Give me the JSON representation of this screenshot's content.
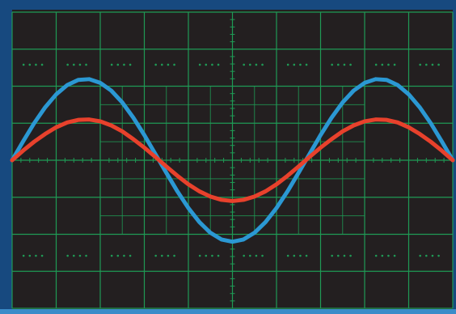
{
  "chart_data": {
    "type": "line",
    "x": [
      0,
      0.25,
      0.5,
      0.75,
      1,
      1.25,
      1.5,
      1.75,
      2,
      2.25,
      2.5,
      2.75,
      3,
      3.25,
      3.5,
      3.75,
      4,
      4.25,
      4.5,
      4.75,
      5,
      5.25,
      5.5,
      5.75,
      6,
      6.25,
      6.5,
      6.75,
      7,
      7.25,
      7.5,
      7.75,
      8,
      8.25,
      8.5,
      8.75,
      9,
      9.25,
      9.5,
      9.75,
      10
    ],
    "series": [
      {
        "color": "#2b98d3",
        "values": [
          0,
          0.51,
          1.0,
          1.43,
          1.78,
          2.03,
          2.17,
          2.19,
          2.09,
          1.88,
          1.56,
          1.15,
          0.68,
          0.17,
          -0.34,
          -0.84,
          -1.29,
          -1.67,
          -1.96,
          -2.14,
          -2.2,
          -2.14,
          -1.96,
          -1.67,
          -1.29,
          -0.84,
          -0.34,
          0.17,
          0.68,
          1.15,
          1.56,
          1.88,
          2.09,
          2.19,
          2.17,
          2.03,
          1.78,
          1.43,
          1.0,
          0.51,
          0
        ]
      },
      {
        "color": "#e8412c",
        "values": [
          0,
          0.26,
          0.5,
          0.71,
          0.89,
          1.02,
          1.09,
          1.1,
          1.05,
          0.94,
          0.78,
          0.57,
          0.34,
          0.09,
          -0.17,
          -0.42,
          -0.65,
          -0.84,
          -0.98,
          -1.07,
          -1.1,
          -1.07,
          -0.98,
          -0.84,
          -0.65,
          -0.42,
          -0.17,
          0.09,
          0.34,
          0.57,
          0.78,
          0.94,
          1.05,
          1.1,
          1.09,
          1.02,
          0.89,
          0.71,
          0.5,
          0.26,
          0
        ]
      }
    ],
    "xlim": [
      0,
      10
    ],
    "ylim": [
      -4,
      4
    ],
    "xticks": [
      0,
      1,
      2,
      3,
      4,
      5,
      6,
      7,
      8,
      9,
      10
    ],
    "yticks": [
      -4,
      -3,
      -2,
      -1,
      0,
      1,
      2,
      3,
      4
    ],
    "grid": true,
    "grid_color": "#1f9a55",
    "background": "#231f20"
  }
}
